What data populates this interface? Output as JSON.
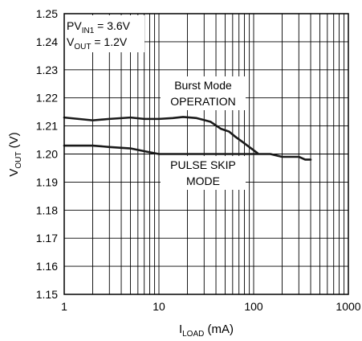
{
  "chart_data": {
    "type": "line",
    "xscale": "log",
    "xlim": [
      1,
      1000
    ],
    "ylim": [
      1.15,
      1.25
    ],
    "grid": true,
    "xticks": [
      1,
      10,
      100,
      1000
    ],
    "xtick_labels": [
      "1",
      "10",
      "100",
      "1000"
    ],
    "yticks": [
      1.15,
      1.16,
      1.17,
      1.18,
      1.19,
      1.2,
      1.21,
      1.22,
      1.23,
      1.24,
      1.25
    ],
    "ytick_labels": [
      "1.15",
      "1.16",
      "1.17",
      "1.18",
      "1.19",
      "1.20",
      "1.21",
      "1.22",
      "1.23",
      "1.24",
      "1.25"
    ],
    "xlabel": {
      "main": "I",
      "sub": "LOAD",
      "rest": " (mA)"
    },
    "ylabel": {
      "main": "V",
      "sub": "OUT",
      "rest": " (V)"
    },
    "annotations": {
      "pvin": {
        "main": "PV",
        "sub": "IN1",
        "rest": " = 3.6V"
      },
      "vout": {
        "main": "V",
        "sub": "OUT",
        "rest": " = 1.2V"
      },
      "burst_line1": "Burst Mode",
      "burst_line2": "OPERATION",
      "pulse_line1": "PULSE SKIP",
      "pulse_line2": "MODE"
    },
    "series": [
      {
        "label": "Burst Mode OPERATION",
        "x": [
          1,
          2,
          3,
          5,
          7,
          10,
          14,
          18,
          25,
          35,
          45,
          55,
          65,
          75,
          90,
          110
        ],
        "y": [
          1.213,
          1.212,
          1.2125,
          1.213,
          1.2125,
          1.2125,
          1.2128,
          1.2132,
          1.2128,
          1.2115,
          1.209,
          1.208,
          1.206,
          1.2045,
          1.2025,
          1.2003
        ]
      },
      {
        "label": "PULSE SKIP MODE",
        "x": [
          1,
          2,
          3,
          5,
          7,
          10,
          20,
          50,
          100,
          150,
          200,
          300,
          350,
          400
        ],
        "y": [
          1.203,
          1.203,
          1.2025,
          1.202,
          1.201,
          1.2,
          1.2,
          1.2,
          1.2,
          1.2,
          1.199,
          1.199,
          1.198,
          1.198
        ]
      }
    ]
  }
}
